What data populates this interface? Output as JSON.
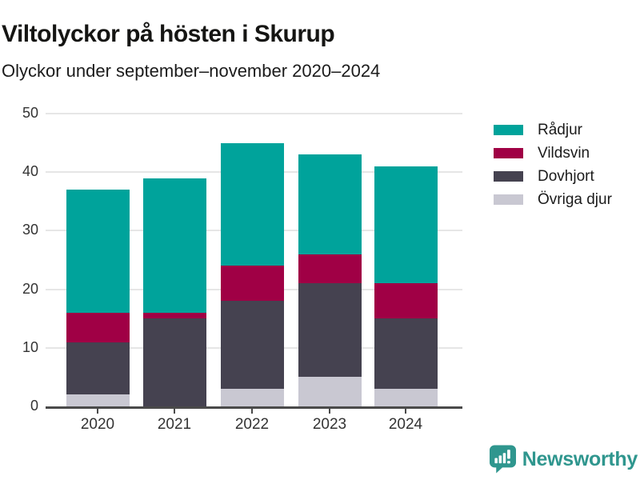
{
  "header": {
    "title": "Viltolyckor på hösten i Skurup",
    "subtitle": "Olyckor under september–november 2020–2024"
  },
  "chart_data": {
    "type": "bar",
    "stacked": true,
    "title": "Viltolyckor på hösten i Skurup",
    "subtitle": "Olyckor under september–november 2020–2024",
    "categories": [
      "2020",
      "2021",
      "2022",
      "2023",
      "2024"
    ],
    "series": [
      {
        "name": "Rådjur",
        "color": "#00A39B",
        "values": [
          21,
          23,
          21,
          17,
          20
        ]
      },
      {
        "name": "Vildsvin",
        "color": "#A00045",
        "values": [
          5,
          1,
          6,
          5,
          6
        ]
      },
      {
        "name": "Dovhjort",
        "color": "#454250",
        "values": [
          9,
          15,
          15,
          16,
          12
        ]
      },
      {
        "name": "Övriga djur",
        "color": "#C9C8D2",
        "values": [
          2,
          0,
          3,
          5,
          3
        ]
      }
    ],
    "stack_order_bottom_to_top": [
      "Övriga djur",
      "Dovhjort",
      "Vildsvin",
      "Rådjur"
    ],
    "totals": [
      37,
      39,
      45,
      43,
      41
    ],
    "xlabel": "",
    "ylabel": "",
    "yticks": [
      0,
      10,
      20,
      30,
      40,
      50
    ],
    "ylim": [
      0,
      50
    ],
    "grid": "horizontal",
    "legend_position": "right"
  },
  "colors": {
    "axis": "#4A4A4A",
    "gridline": "#E6E6E6",
    "tick_label": "#333333"
  },
  "footer": {
    "brand": "Newsworthy",
    "brand_color": "#2F968E",
    "logo_icon": "speech-bubble-bar-chart-icon"
  }
}
